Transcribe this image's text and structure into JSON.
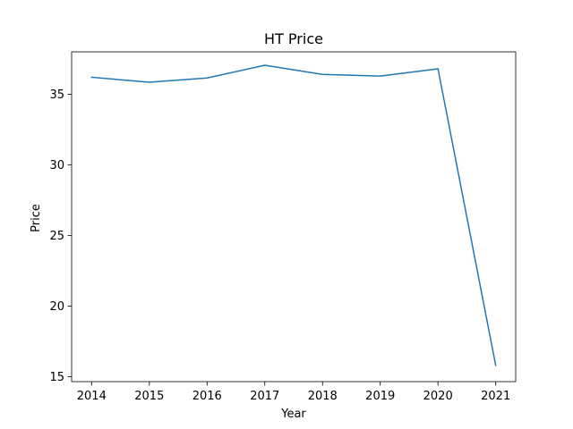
{
  "chart_data": {
    "type": "line",
    "title": "HT Price",
    "xlabel": "Year",
    "ylabel": "Price",
    "x": [
      "2014",
      "2015",
      "2016",
      "2017",
      "2018",
      "2019",
      "2020",
      "2021"
    ],
    "series": [
      {
        "values": [
          36.2,
          35.85,
          36.15,
          37.05,
          36.4,
          36.28,
          36.8,
          15.8
        ],
        "color": "#1f77b4"
      }
    ],
    "ylim": [
      14.65,
      38.0
    ],
    "yticks": [
      15,
      20,
      25,
      30,
      35
    ],
    "grid": false
  }
}
